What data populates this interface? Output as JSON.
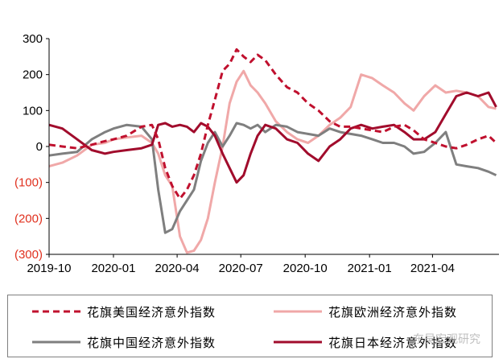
{
  "chart_data": {
    "type": "line",
    "title": "",
    "xlabel": "",
    "ylabel": "",
    "ylim": [
      -300,
      300
    ],
    "y_ticks": [
      {
        "value": 300,
        "label": "300",
        "color": "#000000"
      },
      {
        "value": 200,
        "label": "200",
        "color": "#000000"
      },
      {
        "value": 100,
        "label": "100",
        "color": "#000000"
      },
      {
        "value": 0,
        "label": "0",
        "color": "#000000"
      },
      {
        "value": -100,
        "label": "(100)",
        "color": "#e0301e"
      },
      {
        "value": -200,
        "label": "(200)",
        "color": "#e0301e"
      },
      {
        "value": -300,
        "label": "(300)",
        "color": "#e0301e"
      }
    ],
    "x_ticks": [
      "2019-10",
      "2020-01",
      "2020-04",
      "2020-07",
      "2020-10",
      "2021-01",
      "2021-04"
    ],
    "x_range": [
      "2019-10-01",
      "2021-07-05"
    ],
    "grid": false,
    "legend_position": "bottom",
    "series": [
      {
        "name": "花旗美国经济意外指数",
        "color": "#c0102e",
        "style": "dashed",
        "points": [
          [
            "2019-10-01",
            5
          ],
          [
            "2019-10-20",
            0
          ],
          [
            "2019-11-10",
            -5
          ],
          [
            "2019-12-01",
            5
          ],
          [
            "2019-12-20",
            15
          ],
          [
            "2020-01-01",
            20
          ],
          [
            "2020-01-20",
            30
          ],
          [
            "2020-02-10",
            55
          ],
          [
            "2020-02-25",
            60
          ],
          [
            "2020-03-05",
            20
          ],
          [
            "2020-03-15",
            -60
          ],
          [
            "2020-03-25",
            -110
          ],
          [
            "2020-04-05",
            -145
          ],
          [
            "2020-04-15",
            -120
          ],
          [
            "2020-04-25",
            -80
          ],
          [
            "2020-05-05",
            -20
          ],
          [
            "2020-05-15",
            60
          ],
          [
            "2020-05-25",
            130
          ],
          [
            "2020-06-05",
            210
          ],
          [
            "2020-06-15",
            230
          ],
          [
            "2020-06-25",
            270
          ],
          [
            "2020-07-05",
            250
          ],
          [
            "2020-07-15",
            235
          ],
          [
            "2020-07-25",
            255
          ],
          [
            "2020-08-05",
            240
          ],
          [
            "2020-08-20",
            200
          ],
          [
            "2020-09-05",
            165
          ],
          [
            "2020-09-20",
            150
          ],
          [
            "2020-10-05",
            120
          ],
          [
            "2020-10-20",
            100
          ],
          [
            "2020-11-05",
            70
          ],
          [
            "2020-11-20",
            55
          ],
          [
            "2020-12-05",
            55
          ],
          [
            "2020-12-20",
            50
          ],
          [
            "2021-01-05",
            45
          ],
          [
            "2021-01-20",
            40
          ],
          [
            "2021-02-05",
            55
          ],
          [
            "2021-02-20",
            60
          ],
          [
            "2021-03-05",
            45
          ],
          [
            "2021-03-20",
            20
          ],
          [
            "2021-04-05",
            10
          ],
          [
            "2021-04-20",
            0
          ],
          [
            "2021-05-05",
            -5
          ],
          [
            "2021-05-20",
            5
          ],
          [
            "2021-06-05",
            20
          ],
          [
            "2021-06-20",
            30
          ],
          [
            "2021-07-01",
            10
          ]
        ]
      },
      {
        "name": "花旗欧洲经济意外指数",
        "color": "#f0a8a8",
        "style": "solid",
        "points": [
          [
            "2019-10-01",
            -55
          ],
          [
            "2019-10-20",
            -45
          ],
          [
            "2019-11-10",
            -25
          ],
          [
            "2019-12-01",
            5
          ],
          [
            "2019-12-20",
            10
          ],
          [
            "2020-01-01",
            20
          ],
          [
            "2020-01-20",
            25
          ],
          [
            "2020-02-10",
            30
          ],
          [
            "2020-02-25",
            10
          ],
          [
            "2020-03-05",
            -20
          ],
          [
            "2020-03-15",
            -80
          ],
          [
            "2020-03-25",
            -110
          ],
          [
            "2020-04-05",
            -250
          ],
          [
            "2020-04-15",
            -295
          ],
          [
            "2020-04-25",
            -290
          ],
          [
            "2020-05-05",
            -260
          ],
          [
            "2020-05-15",
            -200
          ],
          [
            "2020-05-25",
            -100
          ],
          [
            "2020-06-05",
            0
          ],
          [
            "2020-06-15",
            120
          ],
          [
            "2020-06-25",
            180
          ],
          [
            "2020-07-05",
            210
          ],
          [
            "2020-07-15",
            170
          ],
          [
            "2020-07-25",
            150
          ],
          [
            "2020-08-05",
            120
          ],
          [
            "2020-08-20",
            70
          ],
          [
            "2020-09-05",
            40
          ],
          [
            "2020-09-20",
            20
          ],
          [
            "2020-10-05",
            10
          ],
          [
            "2020-10-20",
            30
          ],
          [
            "2020-11-05",
            60
          ],
          [
            "2020-11-20",
            80
          ],
          [
            "2020-12-05",
            110
          ],
          [
            "2020-12-20",
            200
          ],
          [
            "2021-01-05",
            190
          ],
          [
            "2021-01-20",
            170
          ],
          [
            "2021-02-05",
            150
          ],
          [
            "2021-02-20",
            120
          ],
          [
            "2021-03-05",
            100
          ],
          [
            "2021-03-20",
            140
          ],
          [
            "2021-04-05",
            170
          ],
          [
            "2021-04-20",
            150
          ],
          [
            "2021-05-05",
            155
          ],
          [
            "2021-05-20",
            150
          ],
          [
            "2021-06-05",
            140
          ],
          [
            "2021-06-20",
            110
          ],
          [
            "2021-07-01",
            105
          ]
        ]
      },
      {
        "name": "花旗中国经济意外指数",
        "color": "#7f7f7f",
        "style": "solid",
        "points": [
          [
            "2019-10-01",
            -25
          ],
          [
            "2019-10-20",
            -20
          ],
          [
            "2019-11-10",
            -15
          ],
          [
            "2019-12-01",
            20
          ],
          [
            "2019-12-20",
            40
          ],
          [
            "2020-01-01",
            50
          ],
          [
            "2020-01-20",
            60
          ],
          [
            "2020-02-10",
            55
          ],
          [
            "2020-02-25",
            20
          ],
          [
            "2020-03-05",
            -120
          ],
          [
            "2020-03-15",
            -240
          ],
          [
            "2020-03-25",
            -230
          ],
          [
            "2020-04-05",
            -180
          ],
          [
            "2020-04-15",
            -150
          ],
          [
            "2020-04-25",
            -120
          ],
          [
            "2020-05-05",
            -40
          ],
          [
            "2020-05-15",
            10
          ],
          [
            "2020-05-25",
            40
          ],
          [
            "2020-06-05",
            0
          ],
          [
            "2020-06-15",
            30
          ],
          [
            "2020-06-25",
            65
          ],
          [
            "2020-07-05",
            60
          ],
          [
            "2020-07-15",
            50
          ],
          [
            "2020-07-25",
            60
          ],
          [
            "2020-08-05",
            40
          ],
          [
            "2020-08-20",
            60
          ],
          [
            "2020-09-05",
            55
          ],
          [
            "2020-09-20",
            40
          ],
          [
            "2020-10-05",
            35
          ],
          [
            "2020-10-20",
            30
          ],
          [
            "2020-11-05",
            50
          ],
          [
            "2020-11-20",
            40
          ],
          [
            "2020-12-05",
            35
          ],
          [
            "2020-12-20",
            30
          ],
          [
            "2021-01-05",
            20
          ],
          [
            "2021-01-20",
            10
          ],
          [
            "2021-02-05",
            10
          ],
          [
            "2021-02-20",
            0
          ],
          [
            "2021-03-05",
            -20
          ],
          [
            "2021-03-20",
            -15
          ],
          [
            "2021-04-05",
            10
          ],
          [
            "2021-04-20",
            40
          ],
          [
            "2021-05-05",
            -50
          ],
          [
            "2021-05-20",
            -55
          ],
          [
            "2021-06-05",
            -60
          ],
          [
            "2021-06-20",
            -70
          ],
          [
            "2021-07-01",
            -80
          ]
        ]
      },
      {
        "name": "花旗日本经济意外指数",
        "color": "#a10c2c",
        "style": "solid",
        "points": [
          [
            "2019-10-01",
            60
          ],
          [
            "2019-10-20",
            50
          ],
          [
            "2019-11-10",
            20
          ],
          [
            "2019-12-01",
            -10
          ],
          [
            "2019-12-20",
            -20
          ],
          [
            "2020-01-01",
            -15
          ],
          [
            "2020-01-20",
            -10
          ],
          [
            "2020-02-10",
            -5
          ],
          [
            "2020-02-25",
            5
          ],
          [
            "2020-03-05",
            60
          ],
          [
            "2020-03-15",
            65
          ],
          [
            "2020-03-25",
            55
          ],
          [
            "2020-04-05",
            60
          ],
          [
            "2020-04-15",
            55
          ],
          [
            "2020-04-25",
            40
          ],
          [
            "2020-05-05",
            65
          ],
          [
            "2020-05-15",
            55
          ],
          [
            "2020-05-25",
            30
          ],
          [
            "2020-06-05",
            -20
          ],
          [
            "2020-06-15",
            -60
          ],
          [
            "2020-06-25",
            -100
          ],
          [
            "2020-07-05",
            -80
          ],
          [
            "2020-07-15",
            -20
          ],
          [
            "2020-07-25",
            30
          ],
          [
            "2020-08-05",
            60
          ],
          [
            "2020-08-20",
            50
          ],
          [
            "2020-09-05",
            20
          ],
          [
            "2020-09-20",
            10
          ],
          [
            "2020-10-05",
            -20
          ],
          [
            "2020-10-20",
            -40
          ],
          [
            "2020-11-05",
            0
          ],
          [
            "2020-11-20",
            20
          ],
          [
            "2020-12-05",
            50
          ],
          [
            "2020-12-20",
            60
          ],
          [
            "2021-01-05",
            50
          ],
          [
            "2021-01-20",
            55
          ],
          [
            "2021-02-05",
            60
          ],
          [
            "2021-02-20",
            40
          ],
          [
            "2021-03-05",
            20
          ],
          [
            "2021-03-20",
            20
          ],
          [
            "2021-04-05",
            40
          ],
          [
            "2021-04-20",
            90
          ],
          [
            "2021-05-05",
            140
          ],
          [
            "2021-05-20",
            150
          ],
          [
            "2021-06-05",
            140
          ],
          [
            "2021-06-20",
            150
          ],
          [
            "2021-07-01",
            110
          ]
        ]
      }
    ]
  },
  "legend": {
    "items": [
      {
        "label": "花旗美国经济意外指数",
        "color": "#c0102e",
        "style": "dashed"
      },
      {
        "label": "花旗欧洲经济意外指数",
        "color": "#f0a8a8",
        "style": "solid"
      },
      {
        "label": "花旗中国经济意外指数",
        "color": "#7f7f7f",
        "style": "solid"
      },
      {
        "label": "花旗日本经济意外指数",
        "color": "#a10c2c",
        "style": "solid"
      }
    ]
  },
  "watermark": "东吴宏观研究"
}
